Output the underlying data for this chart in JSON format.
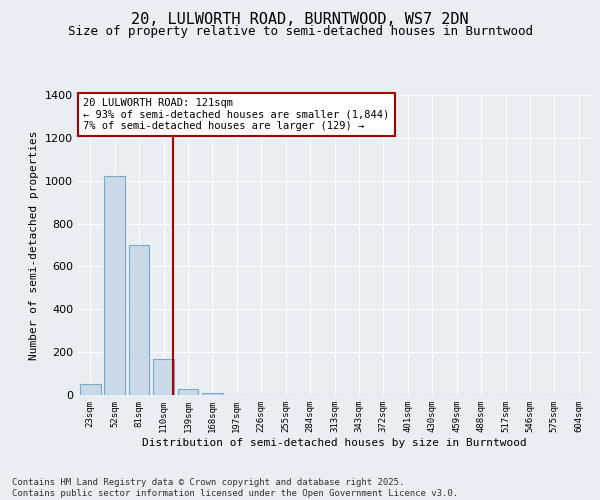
{
  "title1": "20, LULWORTH ROAD, BURNTWOOD, WS7 2DN",
  "title2": "Size of property relative to semi-detached houses in Burntwood",
  "xlabel": "Distribution of semi-detached houses by size in Burntwood",
  "ylabel": "Number of semi-detached properties",
  "bar_labels": [
    "23sqm",
    "52sqm",
    "81sqm",
    "110sqm",
    "139sqm",
    "168sqm",
    "197sqm",
    "226sqm",
    "255sqm",
    "284sqm",
    "313sqm",
    "343sqm",
    "372sqm",
    "401sqm",
    "430sqm",
    "459sqm",
    "488sqm",
    "517sqm",
    "546sqm",
    "575sqm",
    "604sqm"
  ],
  "bar_values": [
    50,
    1020,
    700,
    170,
    30,
    10,
    0,
    0,
    0,
    0,
    0,
    0,
    0,
    0,
    0,
    0,
    0,
    0,
    0,
    0,
    0
  ],
  "bar_color": "#c9d9e8",
  "bar_edgecolor": "#7aaac8",
  "vline_x": 3.4,
  "vline_color": "#aa0000",
  "annotation_text": "20 LULWORTH ROAD: 121sqm\n← 93% of semi-detached houses are smaller (1,844)\n7% of semi-detached houses are larger (129) →",
  "annotation_box_color": "#aa0000",
  "ylim": [
    0,
    1400
  ],
  "yticks": [
    0,
    200,
    400,
    600,
    800,
    1000,
    1200,
    1400
  ],
  "bg_color": "#e8eef4",
  "plot_bg_color": "#e8eef4",
  "footer": "Contains HM Land Registry data © Crown copyright and database right 2025.\nContains public sector information licensed under the Open Government Licence v3.0.",
  "title1_fontsize": 11,
  "title2_fontsize": 9,
  "annotation_fontsize": 7.5,
  "footer_fontsize": 6.5,
  "ylabel_fontsize": 8,
  "xlabel_fontsize": 8
}
